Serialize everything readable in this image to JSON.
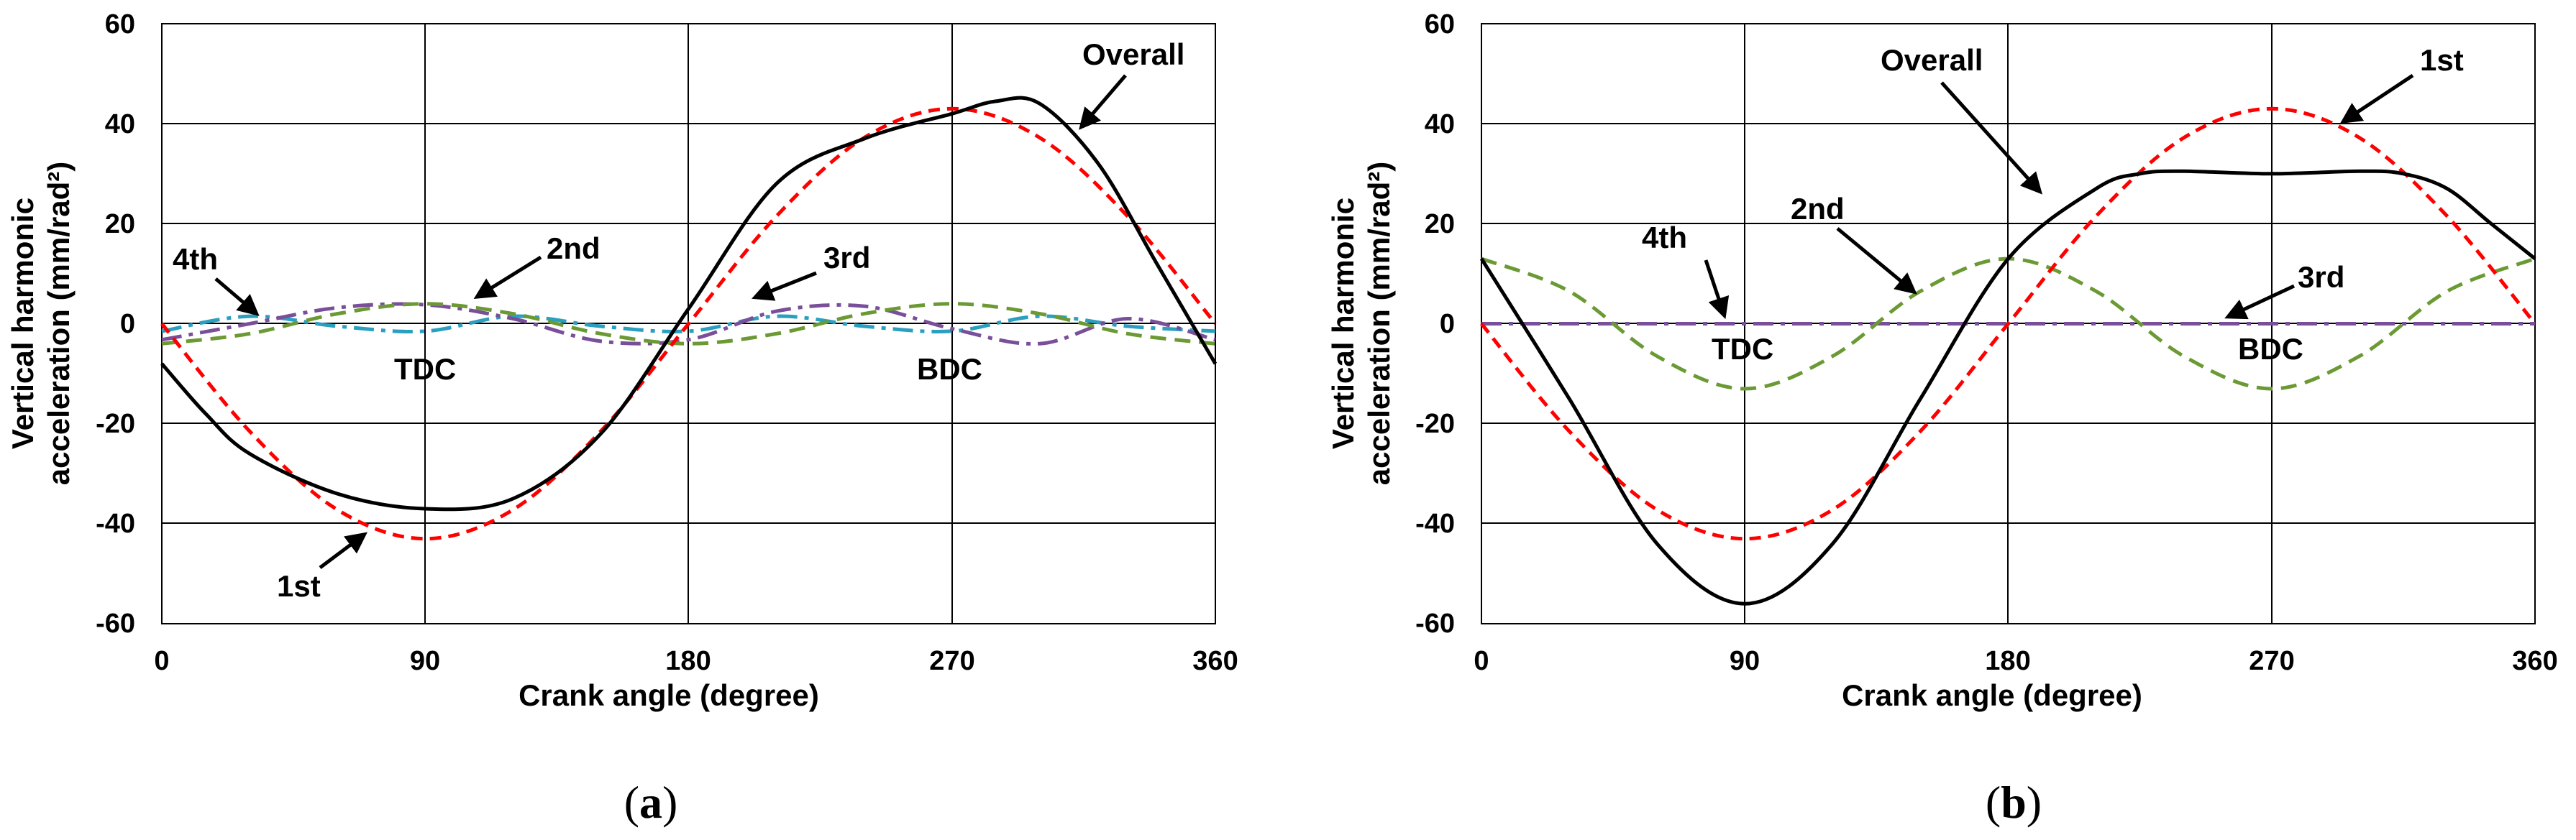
{
  "chart_data": [
    {
      "type": "line",
      "panel": "a",
      "caption_open": "(",
      "caption_letter": "a",
      "caption_close": ")",
      "xlabel": "Crank angle (degree)",
      "ylabel_line1": "Vertical harmonic",
      "ylabel_line2": "acceleration (mm/rad²)",
      "xlim": [
        0,
        360
      ],
      "ylim": [
        -60,
        60
      ],
      "xticks": [
        "0",
        "90",
        "180",
        "270",
        "360"
      ],
      "yticks": [
        "60",
        "40",
        "20",
        "0",
        "-20",
        "-40",
        "-60"
      ],
      "grid": true,
      "series": [
        {
          "name": "1st",
          "color": "#ff0000",
          "style": "dash",
          "x": [
            0,
            30,
            60,
            90,
            120,
            150,
            180,
            210,
            240,
            270,
            300,
            330,
            360
          ],
          "values": [
            0,
            -21.5,
            -37.2,
            -43,
            -37.2,
            -21.5,
            0,
            21.5,
            37.2,
            43,
            37.2,
            21.5,
            0
          ]
        },
        {
          "name": "2nd",
          "color": "#6b9a34",
          "style": "dash",
          "x": [
            0,
            30,
            60,
            90,
            120,
            150,
            180,
            210,
            240,
            270,
            300,
            330,
            360
          ],
          "values": [
            -4,
            -2,
            2,
            4,
            2,
            -2,
            -4,
            -2,
            2,
            4,
            2,
            -2,
            -4
          ]
        },
        {
          "name": "3rd",
          "color": "#7a4f9a",
          "style": "dashdot",
          "x": [
            0,
            30,
            60,
            90,
            120,
            150,
            180,
            210,
            240,
            270,
            300,
            330,
            360
          ],
          "values": [
            -3.2,
            0,
            3.2,
            3.8,
            1,
            -3.5,
            -3.2,
            2.5,
            3.5,
            -1,
            -4,
            1,
            -3.2
          ]
        },
        {
          "name": "4th",
          "color": "#2a9fbf",
          "style": "dashdot",
          "x": [
            0,
            30,
            60,
            90,
            120,
            150,
            180,
            210,
            240,
            270,
            300,
            330,
            360
          ],
          "values": [
            -1.5,
            1.5,
            -0.5,
            -1.5,
            1.5,
            -0.5,
            -1.5,
            1.5,
            -0.5,
            -1.5,
            1.5,
            -0.5,
            -1.5
          ]
        },
        {
          "name": "Overall",
          "color": "#000000",
          "style": "solid",
          "x": [
            0,
            15,
            30,
            60,
            90,
            120,
            150,
            180,
            210,
            240,
            270,
            285,
            300,
            320,
            340,
            360
          ],
          "values": [
            -8,
            -18,
            -26,
            -34,
            -37,
            -35,
            -22,
            3,
            28,
            37,
            42,
            44.5,
            44,
            32,
            12,
            -8
          ]
        }
      ],
      "annotations": [
        "Overall",
        "2nd",
        "3rd",
        "4th",
        "1st",
        "TDC",
        "BDC"
      ]
    },
    {
      "type": "line",
      "panel": "b",
      "caption_open": "(",
      "caption_letter": "b",
      "caption_close": ")",
      "xlabel": "Crank angle (degree)",
      "ylabel_line1": "Vertical harmonic",
      "ylabel_line2": "acceleration (mm/rad²)",
      "xlim": [
        0,
        360
      ],
      "ylim": [
        -60,
        60
      ],
      "xticks": [
        "0",
        "90",
        "180",
        "270",
        "360"
      ],
      "yticks": [
        "60",
        "40",
        "20",
        "0",
        "-20",
        "-40",
        "-60"
      ],
      "grid": true,
      "series": [
        {
          "name": "1st",
          "color": "#ff0000",
          "style": "dash",
          "x": [
            0,
            30,
            60,
            90,
            120,
            150,
            180,
            210,
            240,
            270,
            300,
            330,
            360
          ],
          "values": [
            0,
            -21.5,
            -37.2,
            -43,
            -37.2,
            -21.5,
            0,
            21.5,
            37.2,
            43,
            37.2,
            21.5,
            0
          ]
        },
        {
          "name": "2nd",
          "color": "#6b9a34",
          "style": "dash",
          "x": [
            0,
            30,
            60,
            90,
            120,
            150,
            180,
            210,
            240,
            270,
            300,
            330,
            360
          ],
          "values": [
            13,
            6.5,
            -6.5,
            -13,
            -6.5,
            6.5,
            13,
            6.5,
            -6.5,
            -13,
            -6.5,
            6.5,
            13
          ]
        },
        {
          "name": "3rd",
          "color": "#7a4f9a",
          "style": "dashdot",
          "x": [
            0,
            90,
            180,
            270,
            360
          ],
          "values": [
            0,
            0,
            0,
            0,
            0
          ]
        },
        {
          "name": "4th",
          "color": "#2a9fbf",
          "style": "dashdot",
          "x": [
            0,
            90,
            180,
            270,
            360
          ],
          "values": [
            0,
            0,
            0,
            0,
            0
          ]
        },
        {
          "name": "Overall",
          "color": "#000000",
          "style": "solid",
          "x": [
            0,
            30,
            60,
            90,
            120,
            150,
            180,
            210,
            225,
            240,
            270,
            300,
            315,
            330,
            345,
            360
          ],
          "values": [
            13,
            -15,
            -44,
            -56,
            -44,
            -15,
            13,
            27,
            30,
            30.5,
            30,
            30.5,
            30,
            27,
            20,
            13
          ]
        }
      ],
      "annotations": [
        "Overall",
        "1st",
        "2nd",
        "4th",
        "3rd",
        "TDC",
        "BDC"
      ]
    }
  ]
}
